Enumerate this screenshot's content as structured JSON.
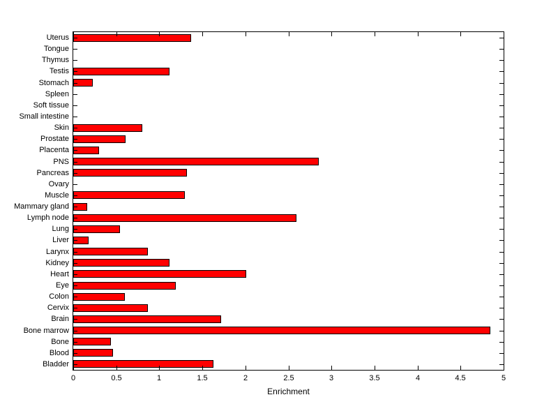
{
  "chart_data": {
    "type": "bar",
    "orientation": "horizontal",
    "title": "",
    "xlabel": "Enrichment",
    "categories_top_to_bottom": [
      "Uterus",
      "Tongue",
      "Thymus",
      "Testis",
      "Stomach",
      "Spleen",
      "Soft tissue",
      "Small intestine",
      "Skin",
      "Prostate",
      "Placenta",
      "PNS",
      "Pancreas",
      "Ovary",
      "Muscle",
      "Mammary gland",
      "Lymph node",
      "Lung",
      "Liver",
      "Larynx",
      "Kidney",
      "Heart",
      "Eye",
      "Colon",
      "Cervix",
      "Brain",
      "Bone marrow",
      "Bone",
      "Blood",
      "Bladder"
    ],
    "values": [
      1.37,
      0,
      0,
      1.12,
      0.23,
      0,
      0,
      0,
      0.8,
      0.61,
      0.3,
      2.85,
      1.32,
      0,
      1.3,
      0.16,
      2.59,
      0.54,
      0.18,
      0.87,
      1.12,
      2.01,
      1.19,
      0.6,
      0.87,
      1.72,
      4.85,
      0.44,
      0.46,
      1.63
    ],
    "xlim": [
      0,
      5
    ],
    "xticks": [
      0,
      0.5,
      1,
      1.5,
      2,
      2.5,
      3,
      3.5,
      4,
      4.5,
      5
    ],
    "grid": false,
    "legend": "none",
    "bar_color": "#ff0000",
    "bar_edge_color": "#000000",
    "axis_color": "#000000",
    "background": "#ffffff"
  }
}
